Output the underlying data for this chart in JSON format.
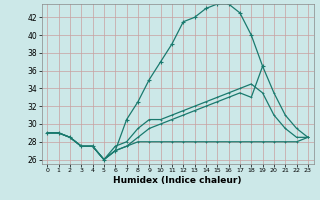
{
  "xlabel": "Humidex (Indice chaleur)",
  "bg_color": "#cce8e8",
  "grid_color": "#b8d8d8",
  "line_color": "#1a7a6e",
  "xlim": [
    -0.5,
    23.5
  ],
  "ylim": [
    25.5,
    43.5
  ],
  "yticks": [
    26,
    28,
    30,
    32,
    34,
    36,
    38,
    40,
    42
  ],
  "xticks": [
    0,
    1,
    2,
    3,
    4,
    5,
    6,
    7,
    8,
    9,
    10,
    11,
    12,
    13,
    14,
    15,
    16,
    17,
    18,
    19,
    20,
    21,
    22,
    23
  ],
  "line_top_x": [
    0,
    1,
    2,
    3,
    4,
    5,
    6,
    7,
    8,
    9,
    10,
    11,
    12,
    13,
    14,
    15,
    16,
    17,
    18,
    19
  ],
  "line_top_y": [
    29.0,
    29.0,
    28.5,
    27.5,
    27.5,
    26.0,
    27.0,
    30.5,
    32.5,
    35.0,
    37.0,
    39.0,
    41.5,
    42.0,
    43.0,
    43.5,
    43.5,
    42.5,
    40.0,
    36.5
  ],
  "line_diag_x": [
    0,
    1,
    2,
    3,
    4,
    5,
    6,
    7,
    8,
    9,
    10,
    11,
    12,
    13,
    14,
    15,
    16,
    17,
    18,
    19,
    20,
    21,
    22,
    23
  ],
  "line_diag_y": [
    29.0,
    29.0,
    28.5,
    27.5,
    27.5,
    26.0,
    27.5,
    28.0,
    29.5,
    30.5,
    30.5,
    31.0,
    31.5,
    32.0,
    32.5,
    33.0,
    33.5,
    34.0,
    34.5,
    33.5,
    31.0,
    29.5,
    28.5,
    28.5
  ],
  "line_diag2_x": [
    0,
    1,
    2,
    3,
    4,
    5,
    6,
    7,
    8,
    9,
    10,
    11,
    12,
    13,
    14,
    15,
    16,
    17,
    18,
    19,
    20,
    21,
    22,
    23
  ],
  "line_diag2_y": [
    29.0,
    29.0,
    28.5,
    27.5,
    27.5,
    26.0,
    27.0,
    27.5,
    28.5,
    29.5,
    30.0,
    30.5,
    31.0,
    31.5,
    32.0,
    32.5,
    33.0,
    33.5,
    33.0,
    36.5,
    33.5,
    31.0,
    29.5,
    28.5
  ],
  "line_flat_x": [
    0,
    1,
    2,
    3,
    4,
    5,
    6,
    7,
    8,
    9,
    10,
    11,
    12,
    13,
    14,
    15,
    16,
    17,
    18,
    19,
    20,
    21,
    22,
    23
  ],
  "line_flat_y": [
    29.0,
    29.0,
    28.5,
    27.5,
    27.5,
    26.0,
    27.0,
    27.5,
    28.0,
    28.0,
    28.0,
    28.0,
    28.0,
    28.0,
    28.0,
    28.0,
    28.0,
    28.0,
    28.0,
    28.0,
    28.0,
    28.0,
    28.0,
    28.5
  ]
}
